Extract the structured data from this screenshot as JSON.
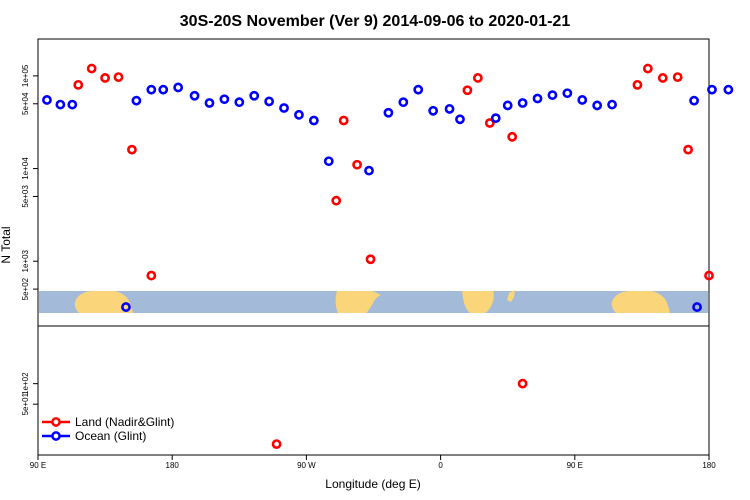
{
  "chart_data": {
    "type": "scatter",
    "title": "30S-20S November (Ver 9)   2014-09-06 to 2020-01-21",
    "xlabel": "Longitude (deg E)",
    "ylabel": "N Total",
    "x_tick_labels": [
      "90 E",
      "180",
      "90 W",
      "0",
      "90 E",
      "180"
    ],
    "x_range_unwrapped": [
      90,
      540
    ],
    "x_ticks_unwrapped": [
      90,
      180,
      270,
      360,
      450,
      540
    ],
    "top_panel": {
      "yscale": "log",
      "ylim": [
        200,
        250000
      ],
      "y_ticks": [
        500,
        1000,
        5000,
        10000,
        50000,
        100000
      ],
      "y_tick_labels": [
        "5e+02",
        "1e+03",
        "5e+03",
        "1e+04",
        "5e+04",
        "1e+05"
      ],
      "land_band": {
        "ylim": [
          285,
          420
        ]
      }
    },
    "bottom_panel": {
      "yscale": "log",
      "ylim": [
        9,
        700
      ],
      "y_ticks": [
        50,
        100
      ],
      "y_tick_labels": [
        "5e+01",
        "1e+02"
      ]
    },
    "legend": {
      "position": "bottom-left"
    },
    "series": [
      {
        "name": "Land (Nadir&Glint)",
        "color": "#ff0000",
        "points_top": [
          {
            "x": 117,
            "y": 80000
          },
          {
            "x": 126,
            "y": 120000
          },
          {
            "x": 135,
            "y": 95000
          },
          {
            "x": 144,
            "y": 97000
          },
          {
            "x": 153,
            "y": 16000
          },
          {
            "x": 166,
            "y": 700
          },
          {
            "x": 290,
            "y": 4500
          },
          {
            "x": 295,
            "y": 33000
          },
          {
            "x": 304,
            "y": 11000
          },
          {
            "x": 313,
            "y": 1050
          },
          {
            "x": 378,
            "y": 70000
          },
          {
            "x": 385,
            "y": 95000
          },
          {
            "x": 393,
            "y": 31000
          },
          {
            "x": 408,
            "y": 22000
          },
          {
            "x": 492,
            "y": 80000
          },
          {
            "x": 499,
            "y": 120000
          },
          {
            "x": 509,
            "y": 95000
          },
          {
            "x": 519,
            "y": 97000
          },
          {
            "x": 526,
            "y": 16000
          },
          {
            "x": 540,
            "y": 700
          }
        ],
        "points_bottom": [
          {
            "x": 250,
            "y": 13
          },
          {
            "x": 415,
            "y": 100
          }
        ]
      },
      {
        "name": "Ocean (Glint)",
        "color": "#0000ff",
        "points_top": [
          {
            "x": 96,
            "y": 55000
          },
          {
            "x": 105,
            "y": 49000
          },
          {
            "x": 113,
            "y": 49000
          },
          {
            "x": 149,
            "y": 320
          },
          {
            "x": 156,
            "y": 54000
          },
          {
            "x": 166,
            "y": 71000
          },
          {
            "x": 174,
            "y": 71000
          },
          {
            "x": 184,
            "y": 75000
          },
          {
            "x": 195,
            "y": 61000
          },
          {
            "x": 205,
            "y": 51000
          },
          {
            "x": 215,
            "y": 56000
          },
          {
            "x": 225,
            "y": 52000
          },
          {
            "x": 235,
            "y": 61000
          },
          {
            "x": 245,
            "y": 53000
          },
          {
            "x": 255,
            "y": 45000
          },
          {
            "x": 265,
            "y": 38000
          },
          {
            "x": 275,
            "y": 33000
          },
          {
            "x": 285,
            "y": 12000
          },
          {
            "x": 312,
            "y": 9500
          },
          {
            "x": 325,
            "y": 40000
          },
          {
            "x": 335,
            "y": 52000
          },
          {
            "x": 345,
            "y": 71000
          },
          {
            "x": 355,
            "y": 42000
          },
          {
            "x": 366,
            "y": 44000
          },
          {
            "x": 373,
            "y": 34000
          },
          {
            "x": 397,
            "y": 35000
          },
          {
            "x": 405,
            "y": 48000
          },
          {
            "x": 415,
            "y": 51000
          },
          {
            "x": 425,
            "y": 57000
          },
          {
            "x": 435,
            "y": 62000
          },
          {
            "x": 445,
            "y": 65000
          },
          {
            "x": 455,
            "y": 55000
          },
          {
            "x": 465,
            "y": 48000
          },
          {
            "x": 475,
            "y": 49000
          },
          {
            "x": 532,
            "y": 320
          },
          {
            "x": 530,
            "y": 54000
          },
          {
            "x": 542,
            "y": 71000
          },
          {
            "x": 553,
            "y": 71000
          }
        ],
        "points_bottom": []
      }
    ]
  }
}
